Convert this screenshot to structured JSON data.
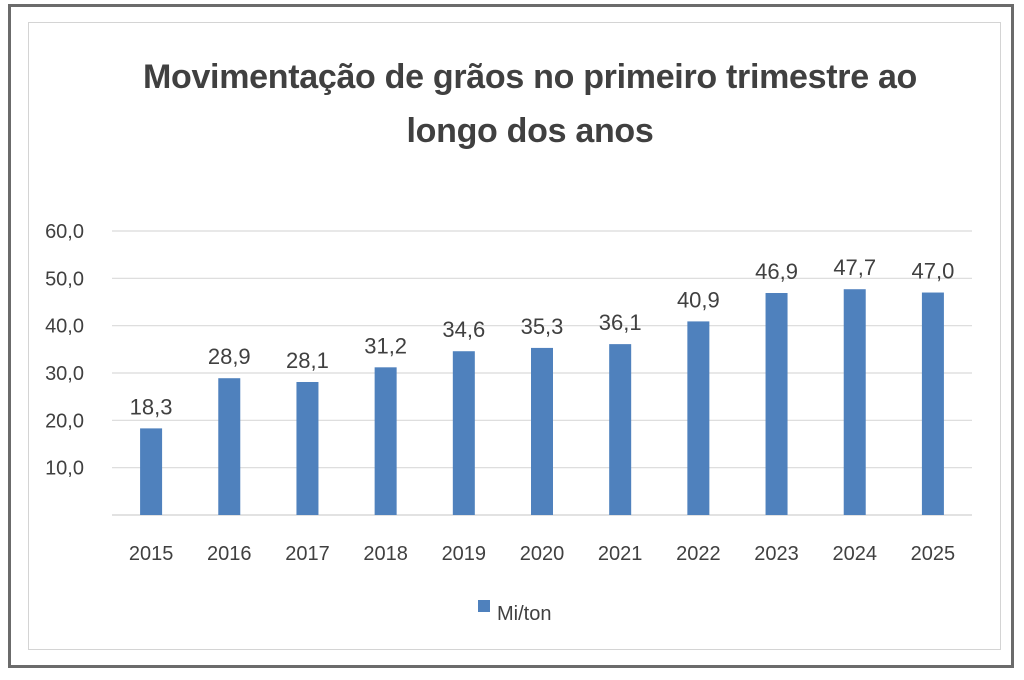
{
  "chart_data": {
    "type": "bar",
    "title": "Movimentação de grãos no primeiro trimestre ao longo dos anos",
    "categories": [
      "2015",
      "2016",
      "2017",
      "2018",
      "2019",
      "2020",
      "2021",
      "2022",
      "2023",
      "2024",
      "2025"
    ],
    "series": [
      {
        "name": "Mi/ton",
        "values": [
          18.3,
          28.9,
          28.1,
          31.2,
          34.6,
          35.3,
          36.1,
          40.9,
          46.9,
          47.7,
          47.0
        ],
        "labels": [
          "18,3",
          "28,9",
          "28,1",
          "31,2",
          "34,6",
          "35,3",
          "36,1",
          "40,9",
          "46,9",
          "47,7",
          "47,0"
        ],
        "color": "#4f81bd"
      }
    ],
    "yticks": [
      "10,0",
      "20,0",
      "30,0",
      "40,0",
      "50,0",
      "60,0"
    ],
    "ylim": [
      0,
      60
    ],
    "xlabel": "",
    "ylabel": "",
    "grid": true,
    "legend_position": "bottom"
  }
}
